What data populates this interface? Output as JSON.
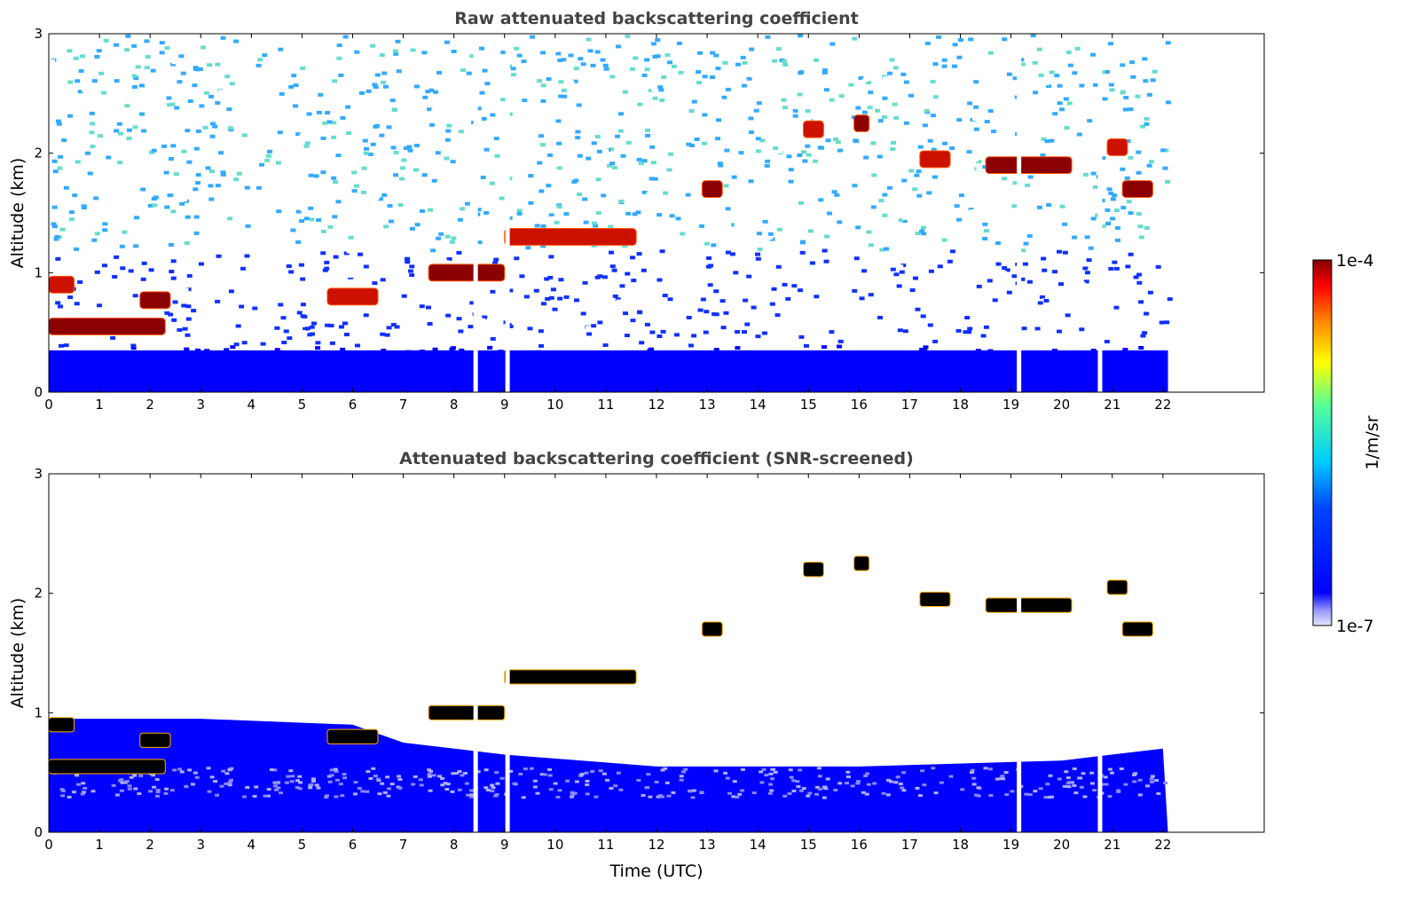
{
  "chart_data": [
    {
      "type": "heatmap",
      "title": "Raw attenuated backscattering coefficient",
      "xlabel": "",
      "ylabel": "Altitude (km)",
      "xlim": [
        0,
        24
      ],
      "ylim": [
        0,
        3
      ],
      "xticks": [
        "0",
        "1",
        "2",
        "3",
        "4",
        "5",
        "6",
        "7",
        "8",
        "9",
        "10",
        "11",
        "12",
        "13",
        "14",
        "15",
        "16",
        "17",
        "18",
        "19",
        "20",
        "21",
        "22"
      ],
      "yticks": [
        "0",
        "1",
        "2",
        "3"
      ],
      "data_end_time": 22.1,
      "gaps_time": [
        8.42,
        9.05,
        19.15,
        20.75
      ],
      "background_noise": "blue-cyan speckle increasing with altitude",
      "cloud_features": [
        {
          "t_start": 0.0,
          "t_end": 2.3,
          "alt_km": 0.55
        },
        {
          "t_start": 0.0,
          "t_end": 0.5,
          "alt_km": 0.9
        },
        {
          "t_start": 1.8,
          "t_end": 2.4,
          "alt_km": 0.77
        },
        {
          "t_start": 5.5,
          "t_end": 6.5,
          "alt_km": 0.8
        },
        {
          "t_start": 7.5,
          "t_end": 9.0,
          "alt_km": 1.0
        },
        {
          "t_start": 9.0,
          "t_end": 11.6,
          "alt_km": 1.3
        },
        {
          "t_start": 12.9,
          "t_end": 13.3,
          "alt_km": 1.7
        },
        {
          "t_start": 14.9,
          "t_end": 15.3,
          "alt_km": 2.2
        },
        {
          "t_start": 15.9,
          "t_end": 16.2,
          "alt_km": 2.25
        },
        {
          "t_start": 17.2,
          "t_end": 17.8,
          "alt_km": 1.95
        },
        {
          "t_start": 18.5,
          "t_end": 20.2,
          "alt_km": 1.9
        },
        {
          "t_start": 20.9,
          "t_end": 21.3,
          "alt_km": 2.05
        },
        {
          "t_start": 21.2,
          "t_end": 21.8,
          "alt_km": 1.7
        }
      ]
    },
    {
      "type": "heatmap",
      "title": "Attenuated backscattering coefficient (SNR-screened)",
      "xlabel": "Time (UTC)",
      "ylabel": "Altitude (km)",
      "xlim": [
        0,
        24
      ],
      "ylim": [
        0,
        3
      ],
      "xticks": [
        "0",
        "1",
        "2",
        "3",
        "4",
        "5",
        "6",
        "7",
        "8",
        "9",
        "10",
        "11",
        "12",
        "13",
        "14",
        "15",
        "16",
        "17",
        "18",
        "19",
        "20",
        "21",
        "22"
      ],
      "yticks": [
        "0",
        "1",
        "2",
        "3"
      ],
      "data_end_time": 22.1,
      "gaps_time": [
        8.42,
        9.05,
        19.15,
        20.75
      ],
      "boundary_layer_top_km": [
        {
          "t": 0,
          "alt": 0.95
        },
        {
          "t": 3,
          "alt": 0.95
        },
        {
          "t": 6,
          "alt": 0.9
        },
        {
          "t": 7,
          "alt": 0.75
        },
        {
          "t": 9,
          "alt": 0.65
        },
        {
          "t": 12,
          "alt": 0.55
        },
        {
          "t": 16,
          "alt": 0.55
        },
        {
          "t": 20,
          "alt": 0.6
        },
        {
          "t": 22,
          "alt": 0.7
        }
      ]
    }
  ],
  "colorbar": {
    "label": "1/m/sr",
    "max_label": "1e-4",
    "min_label": "1e-7",
    "colormap": "jet"
  }
}
